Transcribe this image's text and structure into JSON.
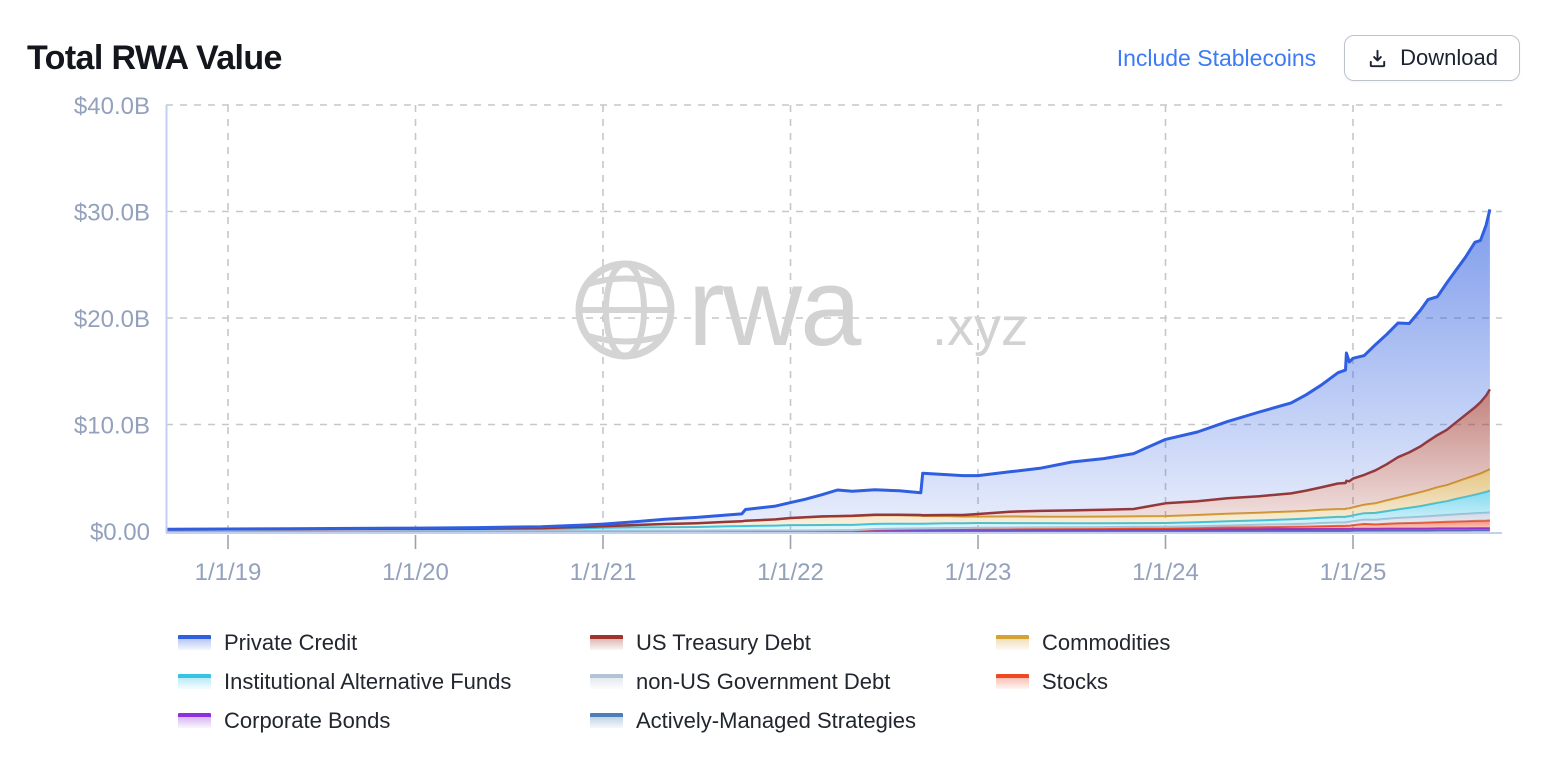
{
  "header": {
    "title": "Total RWA Value",
    "toggle_label": "Include Stablecoins",
    "download_label": "Download"
  },
  "watermark": {
    "brand": "rwa",
    "suffix": ".xyz"
  },
  "chart_data": {
    "type": "area",
    "stacked": true,
    "title": "Total RWA Value",
    "unit": "USD billions",
    "grid": "dashed",
    "legend_position": "bottom",
    "ylim": [
      0,
      40
    ],
    "y_ticks": {
      "labels": [
        "$0.00",
        "$10.0B",
        "$20.0B",
        "$30.0B",
        "$40.0B"
      ],
      "values": [
        0,
        10,
        20,
        30,
        40
      ]
    },
    "x_ticks": {
      "labels": [
        "1/1/19",
        "1/1/20",
        "1/1/21",
        "1/1/22",
        "1/1/23",
        "1/1/24",
        "1/1/25"
      ],
      "values": [
        2019,
        2020,
        2021,
        2022,
        2023,
        2024,
        2025
      ]
    },
    "x_range": [
      2018.67,
      2025.73
    ],
    "x": [
      2018.67,
      2019,
      2019.33,
      2019.67,
      2020,
      2020.33,
      2020.67,
      2020.92,
      2021,
      2021.17,
      2021.33,
      2021.5,
      2021.67,
      2021.74,
      2021.76,
      2021.92,
      2022,
      2022.08,
      2022.17,
      2022.25,
      2022.33,
      2022.45,
      2022.58,
      2022.695,
      2022.705,
      2022.83,
      2022.92,
      2023,
      2023.17,
      2023.33,
      2023.5,
      2023.67,
      2023.83,
      2024,
      2024.17,
      2024.33,
      2024.5,
      2024.67,
      2024.75,
      2024.83,
      2024.92,
      2024.96,
      2024.965,
      2024.98,
      2025,
      2025.06,
      2025.12,
      2025.18,
      2025.24,
      2025.3,
      2025.36,
      2025.4,
      2025.45,
      2025.5,
      2025.55,
      2025.6,
      2025.65,
      2025.68,
      2025.71,
      2025.73
    ],
    "series": [
      {
        "name": "Actively-Managed Strategies",
        "color": "#4a80b5",
        "values": [
          0,
          0,
          0,
          0,
          0,
          0,
          0,
          0,
          0,
          0,
          0,
          0,
          0,
          0,
          0,
          0,
          0,
          0,
          0,
          0,
          0,
          0,
          0,
          0,
          0,
          0,
          0,
          0,
          0,
          0,
          0,
          0,
          0,
          0,
          0,
          0,
          0,
          0,
          0,
          0,
          0,
          0,
          0,
          0,
          0.02,
          0.02,
          0.02,
          0.03,
          0.03,
          0.03,
          0.03,
          0.03,
          0.04,
          0.04,
          0.04,
          0.04,
          0.05,
          0.05,
          0.05,
          0.05
        ]
      },
      {
        "name": "Corporate Bonds",
        "color": "#8e30dd",
        "values": [
          0,
          0,
          0,
          0,
          0,
          0,
          0,
          0,
          0,
          0,
          0,
          0,
          0,
          0,
          0,
          0,
          0,
          0,
          0,
          0,
          0,
          0.12,
          0.14,
          0.15,
          0.15,
          0.16,
          0.15,
          0.15,
          0.16,
          0.16,
          0.17,
          0.17,
          0.18,
          0.18,
          0.18,
          0.19,
          0.19,
          0.19,
          0.19,
          0.2,
          0.2,
          0.2,
          0.2,
          0.2,
          0.2,
          0.2,
          0.2,
          0.2,
          0.2,
          0.2,
          0.2,
          0.2,
          0.2,
          0.2,
          0.2,
          0.2,
          0.2,
          0.2,
          0.2,
          0.2
        ]
      },
      {
        "name": "Stocks",
        "color": "#ee4823",
        "values": [
          0.005,
          0.005,
          0.005,
          0.005,
          0.01,
          0.01,
          0.01,
          0.01,
          0.01,
          0.01,
          0.01,
          0.01,
          0.02,
          0.02,
          0.02,
          0.02,
          0.02,
          0.02,
          0.03,
          0.03,
          0.03,
          0.03,
          0.04,
          0.04,
          0.04,
          0.05,
          0.06,
          0.07,
          0.07,
          0.08,
          0.08,
          0.09,
          0.09,
          0.1,
          0.12,
          0.15,
          0.17,
          0.2,
          0.22,
          0.25,
          0.28,
          0.28,
          0.3,
          0.3,
          0.33,
          0.45,
          0.4,
          0.45,
          0.5,
          0.52,
          0.55,
          0.57,
          0.6,
          0.62,
          0.65,
          0.68,
          0.7,
          0.72,
          0.73,
          0.75
        ]
      },
      {
        "name": "non-US Government Debt",
        "color": "#b4c2d6",
        "values": [
          0.01,
          0.01,
          0.01,
          0.01,
          0.01,
          0.01,
          0.01,
          0.01,
          0.01,
          0.01,
          0.01,
          0.02,
          0.02,
          0.02,
          0.02,
          0.03,
          0.03,
          0.03,
          0.03,
          0.04,
          0.04,
          0.04,
          0.05,
          0.05,
          0.05,
          0.06,
          0.07,
          0.08,
          0.09,
          0.1,
          0.1,
          0.11,
          0.12,
          0.12,
          0.15,
          0.18,
          0.22,
          0.26,
          0.28,
          0.3,
          0.32,
          0.32,
          0.33,
          0.35,
          0.37,
          0.4,
          0.43,
          0.47,
          0.5,
          0.53,
          0.56,
          0.58,
          0.61,
          0.64,
          0.67,
          0.69,
          0.71,
          0.72,
          0.74,
          0.75
        ]
      },
      {
        "name": "Institutional Alternative Funds",
        "color": "#38c3e6",
        "values": [
          0.13,
          0.14,
          0.16,
          0.17,
          0.16,
          0.16,
          0.17,
          0.25,
          0.28,
          0.32,
          0.34,
          0.35,
          0.4,
          0.42,
          0.43,
          0.46,
          0.5,
          0.5,
          0.5,
          0.5,
          0.5,
          0.48,
          0.46,
          0.45,
          0.45,
          0.45,
          0.45,
          0.45,
          0.42,
          0.4,
          0.38,
          0.36,
          0.35,
          0.35,
          0.37,
          0.4,
          0.42,
          0.45,
          0.47,
          0.5,
          0.52,
          0.52,
          0.53,
          0.53,
          0.55,
          0.6,
          0.65,
          0.72,
          0.8,
          0.9,
          1.0,
          1.1,
          1.2,
          1.3,
          1.45,
          1.6,
          1.75,
          1.85,
          1.95,
          2.05
        ]
      },
      {
        "name": "Commodities",
        "color": "#d5a238",
        "values": [
          0,
          0,
          0,
          0.01,
          0.02,
          0.04,
          0.08,
          0.12,
          0.15,
          0.22,
          0.3,
          0.35,
          0.42,
          0.45,
          0.5,
          0.58,
          0.65,
          0.72,
          0.78,
          0.8,
          0.82,
          0.8,
          0.78,
          0.75,
          0.72,
          0.68,
          0.62,
          0.6,
          0.62,
          0.6,
          0.6,
          0.62,
          0.63,
          0.65,
          0.68,
          0.7,
          0.72,
          0.73,
          0.73,
          0.74,
          0.74,
          0.74,
          0.75,
          0.74,
          0.75,
          0.8,
          0.9,
          1.0,
          1.1,
          1.2,
          1.3,
          1.35,
          1.45,
          1.5,
          1.6,
          1.7,
          1.8,
          1.85,
          1.95,
          2.0
        ]
      },
      {
        "name": "US Treasury Debt",
        "color": "#9e342c",
        "values": [
          0,
          0,
          0,
          0,
          0,
          0,
          0,
          0,
          0,
          0,
          0,
          0,
          0,
          0,
          0,
          0,
          0.02,
          0.02,
          0.03,
          0.03,
          0.04,
          0.05,
          0.06,
          0.06,
          0.06,
          0.1,
          0.15,
          0.25,
          0.45,
          0.55,
          0.6,
          0.65,
          0.7,
          1.2,
          1.3,
          1.45,
          1.55,
          1.7,
          1.9,
          2.1,
          2.4,
          2.45,
          2.6,
          2.55,
          2.7,
          2.8,
          3.1,
          3.4,
          3.8,
          4.0,
          4.3,
          4.6,
          4.9,
          5.2,
          5.6,
          6.0,
          6.4,
          6.7,
          7.1,
          7.5
        ]
      },
      {
        "name": "Private Credit",
        "color": "#2f5fe0",
        "values": [
          0.02,
          0.03,
          0.04,
          0.05,
          0.07,
          0.1,
          0.13,
          0.18,
          0.2,
          0.3,
          0.45,
          0.55,
          0.65,
          0.7,
          1.05,
          1.25,
          1.45,
          1.7,
          2.05,
          2.45,
          2.3,
          2.35,
          2.25,
          2.1,
          3.95,
          3.8,
          3.7,
          3.6,
          3.75,
          4.0,
          4.55,
          4.8,
          5.2,
          6.0,
          6.5,
          7.2,
          7.9,
          8.5,
          9.0,
          9.6,
          10.4,
          10.6,
          12.0,
          11.2,
          11.3,
          11.2,
          11.8,
          12.2,
          12.6,
          12.1,
          12.8,
          13.3,
          13.0,
          13.8,
          14.3,
          14.8,
          15.5,
          15.2,
          16.0,
          16.9
        ]
      }
    ],
    "legend_order": [
      "Private Credit",
      "US Treasury Debt",
      "Commodities",
      "Institutional Alternative Funds",
      "non-US Government Debt",
      "Stocks",
      "Corporate Bonds",
      "Actively-Managed Strategies"
    ]
  }
}
